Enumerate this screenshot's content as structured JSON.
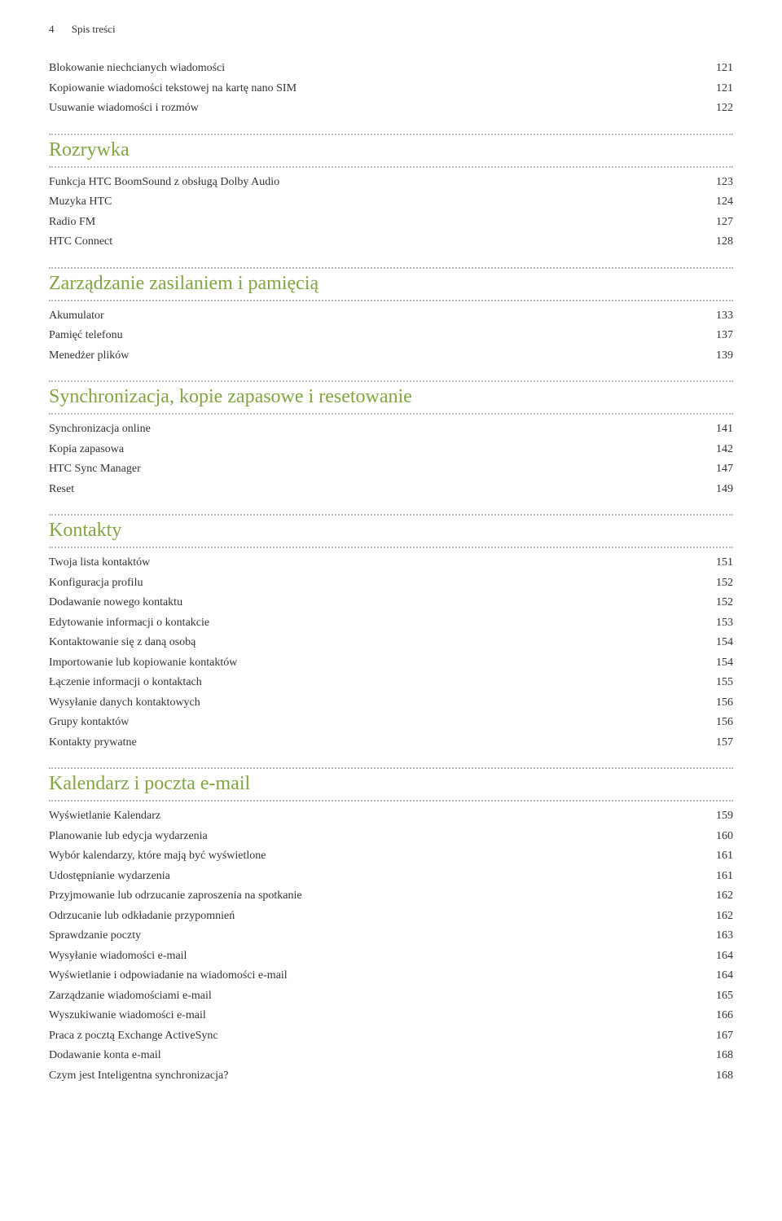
{
  "header": {
    "page_num": "4",
    "title": "Spis treści"
  },
  "top_entries": [
    {
      "label": "Blokowanie niechcianych wiadomości",
      "page": "121"
    },
    {
      "label": "Kopiowanie wiadomości tekstowej na kartę nano SIM",
      "page": "121"
    },
    {
      "label": "Usuwanie wiadomości i rozmów",
      "page": "122"
    }
  ],
  "sections": [
    {
      "title": "Rozrywka",
      "entries": [
        {
          "label": "Funkcja HTC BoomSound z obsługą Dolby Audio",
          "page": "123"
        },
        {
          "label": "Muzyka HTC",
          "page": "124"
        },
        {
          "label": "Radio FM",
          "page": "127"
        },
        {
          "label": "HTC Connect",
          "page": "128"
        }
      ]
    },
    {
      "title": "Zarządzanie zasilaniem i pamięcią",
      "entries": [
        {
          "label": "Akumulator",
          "page": "133"
        },
        {
          "label": "Pamięć telefonu",
          "page": "137"
        },
        {
          "label": "Menedżer plików",
          "page": "139"
        }
      ]
    },
    {
      "title": "Synchronizacja, kopie zapasowe i resetowanie",
      "entries": [
        {
          "label": "Synchronizacja online",
          "page": "141"
        },
        {
          "label": "Kopia zapasowa",
          "page": "142"
        },
        {
          "label": "HTC Sync Manager",
          "page": "147"
        },
        {
          "label": "Reset",
          "page": "149"
        }
      ]
    },
    {
      "title": "Kontakty",
      "entries": [
        {
          "label": "Twoja lista kontaktów",
          "page": "151"
        },
        {
          "label": "Konfiguracja profilu",
          "page": "152"
        },
        {
          "label": "Dodawanie nowego kontaktu",
          "page": "152"
        },
        {
          "label": "Edytowanie informacji o kontakcie",
          "page": "153"
        },
        {
          "label": "Kontaktowanie się z daną osobą",
          "page": "154"
        },
        {
          "label": "Importowanie lub kopiowanie kontaktów",
          "page": "154"
        },
        {
          "label": "Łączenie informacji o kontaktach",
          "page": "155"
        },
        {
          "label": "Wysyłanie danych kontaktowych",
          "page": "156"
        },
        {
          "label": "Grupy kontaktów",
          "page": "156"
        },
        {
          "label": "Kontakty prywatne",
          "page": "157"
        }
      ]
    },
    {
      "title": "Kalendarz i poczta e-mail",
      "entries": [
        {
          "label": "Wyświetlanie Kalendarz",
          "page": "159"
        },
        {
          "label": "Planowanie lub edycja wydarzenia",
          "page": "160"
        },
        {
          "label": "Wybór kalendarzy, które mają być wyświetlone",
          "page": "161"
        },
        {
          "label": "Udostępnianie wydarzenia",
          "page": "161"
        },
        {
          "label": "Przyjmowanie lub odrzucanie zaproszenia na spotkanie",
          "page": "162"
        },
        {
          "label": "Odrzucanie lub odkładanie przypomnień",
          "page": "162"
        },
        {
          "label": "Sprawdzanie poczty",
          "page": "163"
        },
        {
          "label": "Wysyłanie wiadomości e-mail",
          "page": "164"
        },
        {
          "label": "Wyświetlanie i odpowiadanie na wiadomości e-mail",
          "page": "164"
        },
        {
          "label": "Zarządzanie wiadomościami e-mail",
          "page": "165"
        },
        {
          "label": "Wyszukiwanie wiadomości e-mail",
          "page": "166"
        },
        {
          "label": "Praca z pocztą Exchange ActiveSync",
          "page": "167"
        },
        {
          "label": "Dodawanie konta e-mail",
          "page": "168"
        },
        {
          "label": "Czym jest Inteligentna synchronizacja?",
          "page": "168"
        }
      ]
    }
  ]
}
